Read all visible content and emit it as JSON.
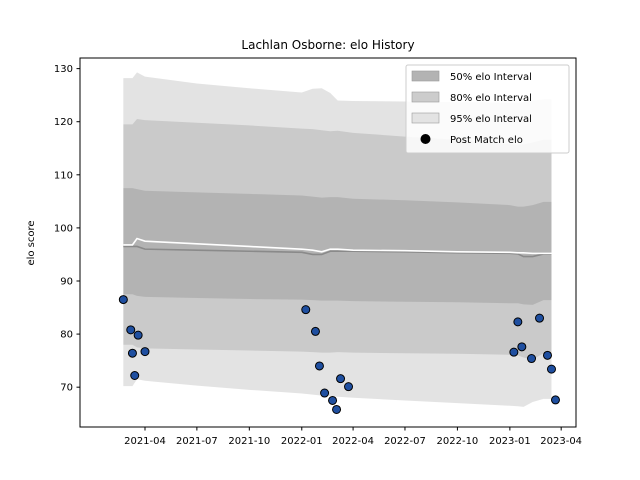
{
  "chart_data": {
    "type": "line",
    "title": "Lachlan Osborne: elo History",
    "xlabel": "",
    "ylabel": "elo score",
    "xlim": [
      "2020-12-08",
      "2023-04-27"
    ],
    "ylim": [
      62.5,
      132.0
    ],
    "y_ticks": [
      70,
      80,
      90,
      100,
      110,
      120,
      130
    ],
    "x_ticks": [
      "2021-04",
      "2021-07",
      "2021-10",
      "2022-01",
      "2022-04",
      "2022-07",
      "2022-10",
      "2023-01",
      "2023-04"
    ],
    "grid": false,
    "legend_position": "top-right",
    "legend": [
      {
        "label": "50% elo Interval",
        "kind": "band",
        "color": "#b3b3b3"
      },
      {
        "label": "80% elo Interval",
        "kind": "band",
        "color": "#cccccc"
      },
      {
        "label": "95% elo Interval",
        "kind": "band",
        "color": "#e3e3e3"
      },
      {
        "label": "Post Match elo",
        "kind": "marker",
        "color": "#000000"
      }
    ],
    "intervals": {
      "x": [
        "2021-02-22",
        "2021-03-10",
        "2021-03-18",
        "2021-04-01",
        "2021-07-01",
        "2021-10-01",
        "2022-01-01",
        "2022-01-20",
        "2022-02-05",
        "2022-02-20",
        "2022-03-05",
        "2022-04-01",
        "2022-07-01",
        "2022-10-01",
        "2023-01-01",
        "2023-01-15",
        "2023-01-25",
        "2023-02-10",
        "2023-03-01",
        "2023-03-15"
      ],
      "mean_upper": [
        96.8,
        96.8,
        98.0,
        97.5,
        97.0,
        96.5,
        96.0,
        95.8,
        95.5,
        96.0,
        96.0,
        95.8,
        95.7,
        95.5,
        95.4,
        95.3,
        95.3,
        95.2,
        95.2,
        95.2
      ],
      "mean_lower": [
        96.5,
        96.5,
        96.5,
        96.0,
        95.8,
        95.6,
        95.4,
        95.0,
        95.0,
        95.6,
        95.6,
        95.6,
        95.5,
        95.3,
        95.2,
        95.1,
        94.6,
        94.6,
        95.1,
        95.1
      ],
      "p50_low": [
        87.5,
        87.5,
        87.2,
        87.0,
        86.8,
        86.6,
        86.5,
        86.4,
        86.3,
        86.3,
        86.3,
        86.2,
        86.1,
        86.0,
        85.8,
        85.8,
        85.6,
        85.5,
        86.4,
        86.4
      ],
      "p50_high": [
        107.5,
        107.5,
        107.3,
        107.0,
        106.7,
        106.4,
        106.1,
        105.9,
        105.7,
        105.8,
        105.8,
        105.5,
        105.2,
        104.8,
        104.3,
        104.0,
        104.0,
        104.3,
        104.9,
        104.9
      ],
      "p80_low": [
        78.0,
        78.0,
        77.5,
        77.3,
        77.1,
        76.9,
        76.7,
        76.6,
        76.5,
        76.5,
        76.6,
        76.5,
        76.4,
        76.3,
        76.1,
        76.0,
        75.6,
        75.2,
        76.4,
        76.4
      ],
      "p80_high": [
        119.5,
        119.5,
        120.5,
        120.3,
        119.8,
        119.3,
        118.7,
        118.6,
        118.4,
        118.2,
        118.3,
        117.9,
        117.2,
        116.6,
        115.8,
        115.7,
        115.7,
        116.1,
        116.6,
        116.6
      ],
      "p95_low": [
        70.2,
        70.2,
        71.5,
        71.2,
        70.3,
        69.5,
        68.8,
        68.6,
        68.4,
        68.3,
        68.2,
        68.0,
        67.5,
        67.0,
        66.5,
        66.4,
        66.3,
        67.2,
        67.8,
        67.8
      ],
      "p95_high": [
        128.2,
        128.2,
        129.3,
        128.5,
        127.2,
        126.3,
        125.5,
        126.2,
        126.3,
        125.4,
        124.0,
        123.9,
        123.8,
        123.7,
        123.6,
        123.6,
        123.7,
        124.0,
        124.2,
        124.2
      ]
    },
    "series": [
      {
        "name": "Post Match elo",
        "color": "#1f4fa0",
        "x": [
          "2021-02-22",
          "2021-03-07",
          "2021-03-10",
          "2021-03-14",
          "2021-03-20",
          "2021-04-01",
          "2022-01-08",
          "2022-01-25",
          "2022-02-01",
          "2022-02-10",
          "2022-02-24",
          "2022-03-03",
          "2022-03-10",
          "2022-03-24",
          "2023-01-08",
          "2023-01-15",
          "2023-01-22",
          "2023-02-08",
          "2023-02-22",
          "2023-03-08",
          "2023-03-15",
          "2023-03-22"
        ],
        "y": [
          86.5,
          80.8,
          76.4,
          72.2,
          79.8,
          76.7,
          84.6,
          80.5,
          74.0,
          68.9,
          67.5,
          65.8,
          71.6,
          70.1,
          76.6,
          82.3,
          77.6,
          75.4,
          83.0,
          76.0,
          73.4,
          67.6
        ]
      }
    ]
  }
}
